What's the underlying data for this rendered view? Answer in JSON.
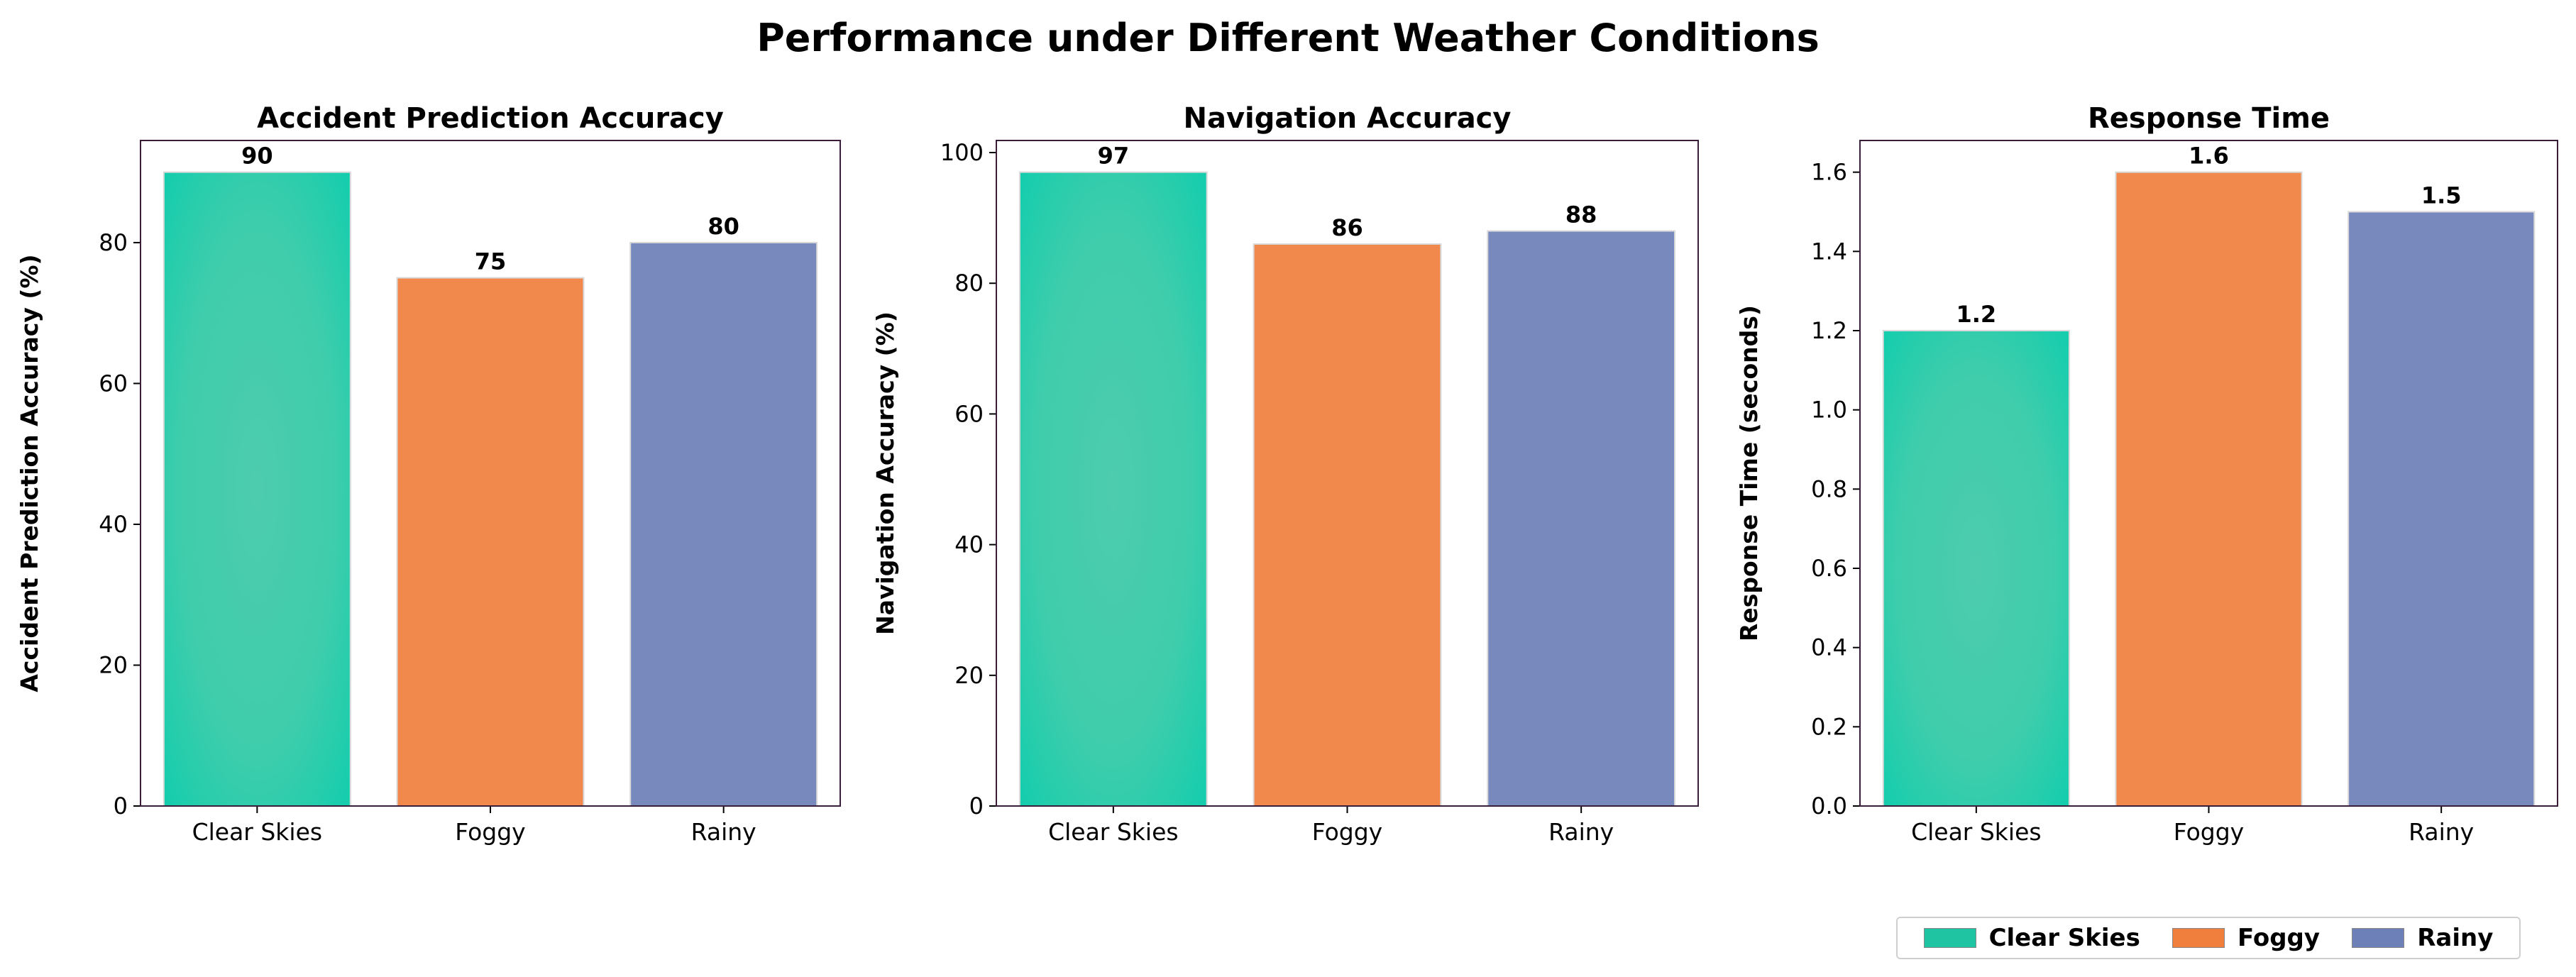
{
  "figure": {
    "title": "Performance under Different Weather Conditions"
  },
  "colors": {
    "clear_skies": "#00c9a7",
    "foggy": "#f07e3d",
    "rainy": "#6d80b8",
    "axes_frame": "#3a1d3a"
  },
  "legend": {
    "items": [
      {
        "label": "Clear Skies",
        "color": "#1fc4a2"
      },
      {
        "label": "Foggy",
        "color": "#f07e3d"
      },
      {
        "label": "Rainy",
        "color": "#6d80b8"
      }
    ]
  },
  "chart_data": [
    {
      "type": "bar",
      "title": "Accident Prediction Accuracy",
      "xlabel": "",
      "ylabel": "Accident Prediction Accuracy (%)",
      "categories": [
        "Clear Skies",
        "Foggy",
        "Rainy"
      ],
      "values": [
        90,
        75,
        80
      ],
      "value_labels": [
        "90",
        "75",
        "80"
      ],
      "ylim": [
        0,
        94.5
      ],
      "yticks": [
        0,
        20,
        40,
        60,
        80
      ],
      "ytick_labels": [
        "0",
        "20",
        "40",
        "60",
        "80"
      ],
      "grid": false
    },
    {
      "type": "bar",
      "title": "Navigation Accuracy",
      "xlabel": "",
      "ylabel": "Navigation Accuracy (%)",
      "categories": [
        "Clear Skies",
        "Foggy",
        "Rainy"
      ],
      "values": [
        97,
        86,
        88
      ],
      "value_labels": [
        "97",
        "86",
        "88"
      ],
      "ylim": [
        0,
        101.85
      ],
      "yticks": [
        0,
        20,
        40,
        60,
        80,
        100
      ],
      "ytick_labels": [
        "0",
        "20",
        "40",
        "60",
        "80",
        "100"
      ],
      "grid": false
    },
    {
      "type": "bar",
      "title": "Response Time",
      "xlabel": "",
      "ylabel": "Response Time (seconds)",
      "categories": [
        "Clear Skies",
        "Foggy",
        "Rainy"
      ],
      "values": [
        1.2,
        1.6,
        1.5
      ],
      "value_labels": [
        "1.2",
        "1.6",
        "1.5"
      ],
      "ylim": [
        0,
        1.68
      ],
      "yticks": [
        0,
        0.2,
        0.4,
        0.6,
        0.8,
        1.0,
        1.2,
        1.4,
        1.6
      ],
      "ytick_labels": [
        "0.0",
        "0.2",
        "0.4",
        "0.6",
        "0.8",
        "1.0",
        "1.2",
        "1.4",
        "1.6"
      ],
      "grid": false
    }
  ]
}
